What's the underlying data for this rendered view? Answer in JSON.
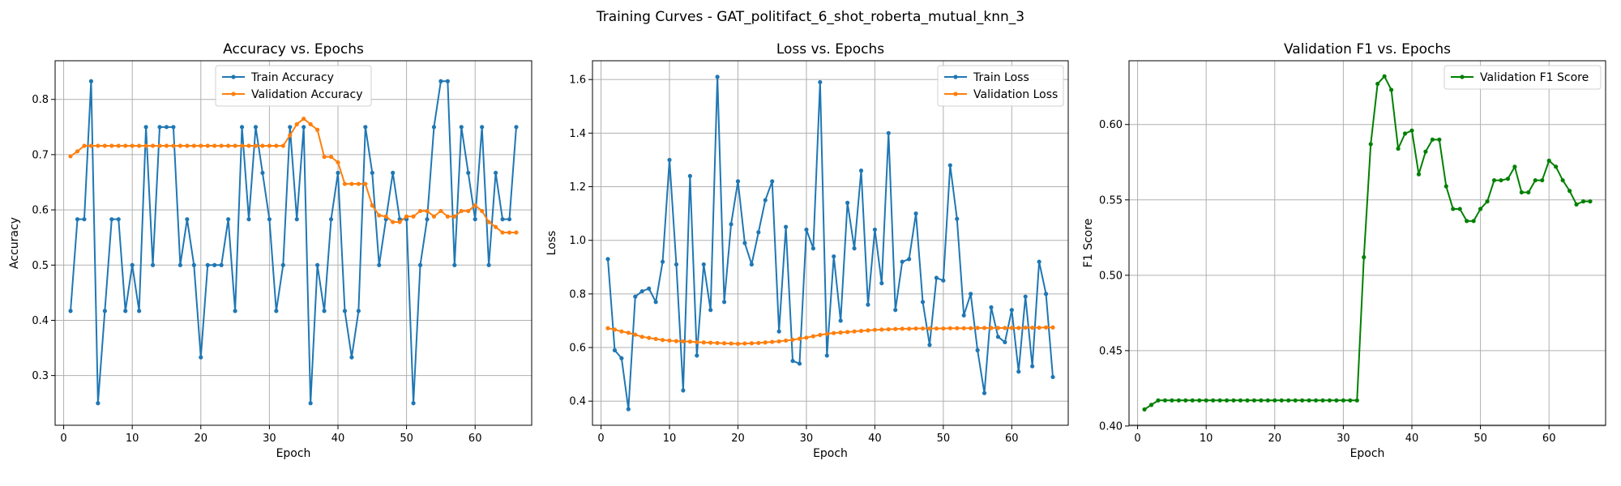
{
  "figure": {
    "suptitle": "Training Curves - GAT_politifact_6_shot_roberta_mutual_knn_3"
  },
  "chart_data": [
    {
      "type": "line",
      "title": "Accuracy vs. Epochs",
      "xlabel": "Epoch",
      "ylabel": "Accuracy",
      "xlim": [
        -1.25,
        68.25
      ],
      "ylim": [
        0.21,
        0.87
      ],
      "xticks": [
        0,
        10,
        20,
        30,
        40,
        50,
        60
      ],
      "yticks": [
        0.3,
        0.4,
        0.5,
        0.6,
        0.7,
        0.8
      ],
      "ytick_labels": [
        "0.3",
        "0.4",
        "0.5",
        "0.6",
        "0.7",
        "0.8"
      ],
      "grid": true,
      "legend_position": "top-center",
      "x_start": 1,
      "series": [
        {
          "name": "Train Accuracy",
          "color": "#1f77b4",
          "values": [
            0.417,
            0.583,
            0.583,
            0.833,
            0.25,
            0.417,
            0.583,
            0.583,
            0.417,
            0.5,
            0.417,
            0.75,
            0.5,
            0.75,
            0.75,
            0.75,
            0.5,
            0.583,
            0.5,
            0.333,
            0.5,
            0.5,
            0.5,
            0.583,
            0.417,
            0.75,
            0.583,
            0.75,
            0.667,
            0.583,
            0.417,
            0.5,
            0.75,
            0.583,
            0.75,
            0.25,
            0.5,
            0.417,
            0.583,
            0.667,
            0.417,
            0.333,
            0.417,
            0.75,
            0.667,
            0.5,
            0.583,
            0.667,
            0.583,
            0.583,
            0.25,
            0.5,
            0.583,
            0.75,
            0.833,
            0.833,
            0.5,
            0.75,
            0.667,
            0.583,
            0.75,
            0.5,
            0.667,
            0.583,
            0.583,
            0.75
          ]
        },
        {
          "name": "Validation Accuracy",
          "color": "#ff7f0e",
          "values": [
            0.697,
            0.706,
            0.716,
            0.716,
            0.716,
            0.716,
            0.716,
            0.716,
            0.716,
            0.716,
            0.716,
            0.716,
            0.716,
            0.716,
            0.716,
            0.716,
            0.716,
            0.716,
            0.716,
            0.716,
            0.716,
            0.716,
            0.716,
            0.716,
            0.716,
            0.716,
            0.716,
            0.716,
            0.716,
            0.716,
            0.716,
            0.716,
            0.735,
            0.755,
            0.765,
            0.755,
            0.745,
            0.696,
            0.696,
            0.686,
            0.647,
            0.647,
            0.647,
            0.647,
            0.608,
            0.59,
            0.588,
            0.578,
            0.578,
            0.588,
            0.588,
            0.598,
            0.598,
            0.588,
            0.598,
            0.588,
            0.588,
            0.598,
            0.598,
            0.608,
            0.598,
            0.578,
            0.569,
            0.559,
            0.559,
            0.559
          ]
        }
      ]
    },
    {
      "type": "line",
      "title": "Loss vs. Epochs",
      "xlabel": "Epoch",
      "ylabel": "Loss",
      "xlim": [
        -1.25,
        68.25
      ],
      "ylim": [
        0.31,
        1.67
      ],
      "xticks": [
        0,
        10,
        20,
        30,
        40,
        50,
        60
      ],
      "yticks": [
        0.4,
        0.6,
        0.8,
        1.0,
        1.2,
        1.4,
        1.6
      ],
      "ytick_labels": [
        "0.4",
        "0.6",
        "0.8",
        "1.0",
        "1.2",
        "1.4",
        "1.6"
      ],
      "grid": true,
      "legend_position": "top-right",
      "x_start": 1,
      "series": [
        {
          "name": "Train Loss",
          "color": "#1f77b4",
          "values": [
            0.93,
            0.59,
            0.56,
            0.37,
            0.79,
            0.81,
            0.82,
            0.77,
            0.92,
            1.3,
            0.91,
            0.44,
            1.24,
            0.57,
            0.91,
            0.74,
            1.61,
            0.77,
            1.06,
            1.22,
            0.99,
            0.91,
            1.03,
            1.15,
            1.22,
            0.66,
            1.05,
            0.55,
            0.54,
            1.04,
            0.97,
            1.59,
            0.57,
            0.94,
            0.7,
            1.14,
            0.97,
            1.26,
            0.76,
            1.04,
            0.84,
            1.4,
            0.74,
            0.92,
            0.93,
            1.1,
            0.77,
            0.61,
            0.86,
            0.85,
            1.28,
            1.08,
            0.72,
            0.8,
            0.59,
            0.43,
            0.75,
            0.64,
            0.62,
            0.74,
            0.51,
            0.79,
            0.53,
            0.92,
            0.8,
            0.49
          ]
        },
        {
          "name": "Validation Loss",
          "color": "#ff7f0e",
          "values": [
            0.672,
            0.667,
            0.66,
            0.655,
            0.648,
            0.64,
            0.636,
            0.632,
            0.628,
            0.626,
            0.624,
            0.623,
            0.622,
            0.62,
            0.619,
            0.618,
            0.617,
            0.616,
            0.615,
            0.614,
            0.615,
            0.616,
            0.617,
            0.619,
            0.621,
            0.623,
            0.626,
            0.629,
            0.633,
            0.637,
            0.642,
            0.647,
            0.651,
            0.654,
            0.656,
            0.658,
            0.66,
            0.662,
            0.664,
            0.666,
            0.667,
            0.668,
            0.669,
            0.67,
            0.67,
            0.671,
            0.671,
            0.671,
            0.671,
            0.671,
            0.672,
            0.672,
            0.672,
            0.672,
            0.673,
            0.673,
            0.673,
            0.673,
            0.673,
            0.673,
            0.673,
            0.674,
            0.674,
            0.674,
            0.675,
            0.675
          ]
        }
      ]
    },
    {
      "type": "line",
      "title": "Validation F1 vs. Epochs",
      "xlabel": "Epoch",
      "ylabel": "F1 Score",
      "xlim": [
        -1.25,
        68.25
      ],
      "ylim": [
        0.4005,
        0.6423
      ],
      "xticks": [
        0,
        10,
        20,
        30,
        40,
        50,
        60
      ],
      "yticks": [
        0.4,
        0.45,
        0.5,
        0.55,
        0.6
      ],
      "ytick_labels": [
        "0.40",
        "0.45",
        "0.50",
        "0.55",
        "0.60"
      ],
      "grid": true,
      "legend_position": "top-right",
      "x_start": 1,
      "series": [
        {
          "name": "Validation F1 Score",
          "color": "#008000",
          "values": [
            0.411,
            0.414,
            0.417,
            0.417,
            0.417,
            0.417,
            0.417,
            0.417,
            0.417,
            0.417,
            0.417,
            0.417,
            0.417,
            0.417,
            0.417,
            0.417,
            0.417,
            0.417,
            0.417,
            0.417,
            0.417,
            0.417,
            0.417,
            0.417,
            0.417,
            0.417,
            0.417,
            0.417,
            0.417,
            0.417,
            0.417,
            0.417,
            0.512,
            0.587,
            0.627,
            0.632,
            0.623,
            0.584,
            0.594,
            0.596,
            0.567,
            0.582,
            0.59,
            0.59,
            0.559,
            0.544,
            0.544,
            0.536,
            0.536,
            0.544,
            0.549,
            0.563,
            0.563,
            0.564,
            0.572,
            0.555,
            0.555,
            0.563,
            0.563,
            0.576,
            0.572,
            0.563,
            0.556,
            0.547,
            0.549,
            0.549
          ]
        }
      ]
    }
  ]
}
